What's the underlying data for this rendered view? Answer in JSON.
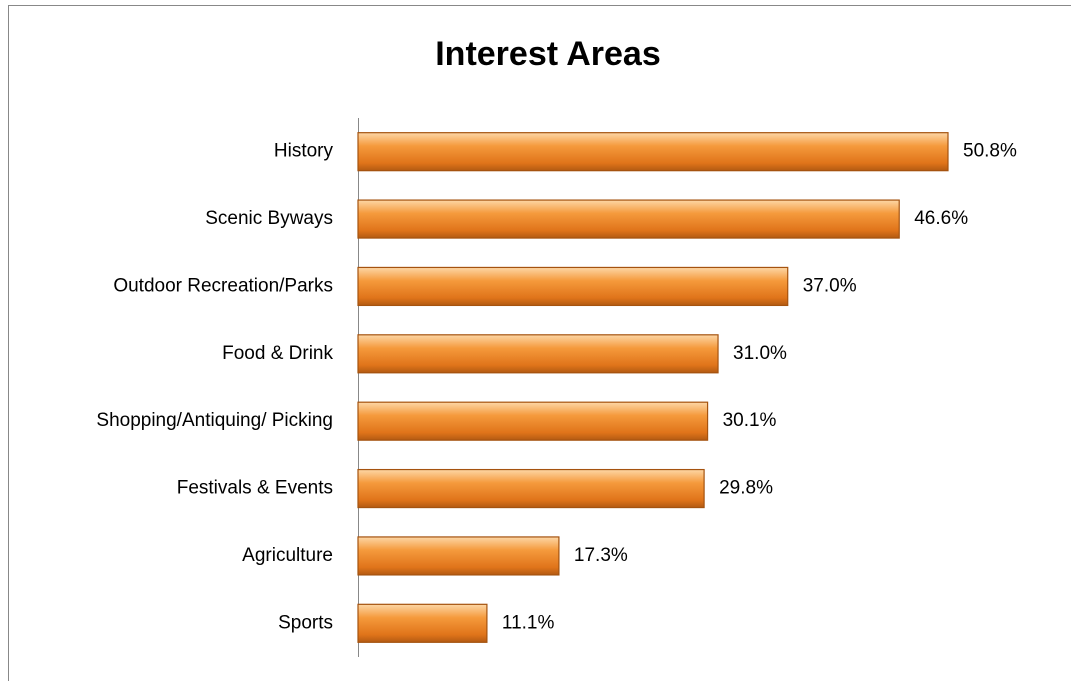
{
  "chart_data": {
    "type": "bar",
    "orientation": "horizontal",
    "title": "Interest Areas",
    "categories": [
      "History",
      "Scenic Byways",
      "Outdoor Recreation/Parks",
      "Food & Drink",
      "Shopping/Antiquing/ Picking",
      "Festivals & Events",
      "Agriculture",
      "Sports"
    ],
    "values": [
      50.8,
      46.6,
      37.0,
      31.0,
      30.1,
      29.8,
      17.3,
      11.1
    ],
    "value_labels": [
      "50.8%",
      "46.6%",
      "37.0%",
      "31.0%",
      "30.1%",
      "29.8%",
      "17.3%",
      "11.1%"
    ],
    "color": "#ef8a26"
  }
}
